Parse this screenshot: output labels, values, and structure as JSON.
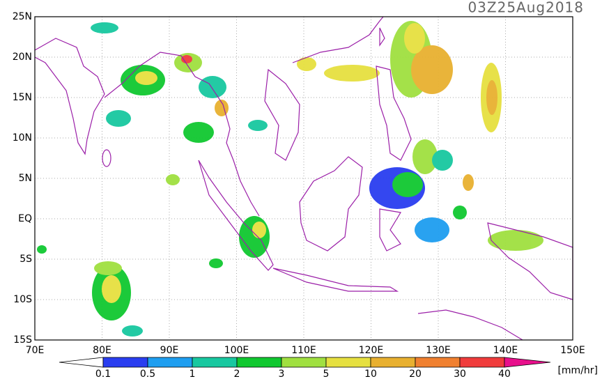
{
  "title": "03Z25Aug2018",
  "lat_labels": [
    "25N",
    "20N",
    "15N",
    "10N",
    "5N",
    "EQ",
    "5S",
    "10S",
    "15S"
  ],
  "lon_labels": [
    "70E",
    "80E",
    "90E",
    "100E",
    "110E",
    "120E",
    "130E",
    "140E",
    "150E"
  ],
  "colorbar": {
    "levels": [
      0.1,
      0.5,
      1,
      2,
      3,
      5,
      10,
      20,
      30,
      40
    ],
    "colors": [
      "#2a3ef0",
      "#1e9ef0",
      "#18c8a0",
      "#10c830",
      "#a0e040",
      "#e6e040",
      "#e8b030",
      "#f08030",
      "#f03c3c",
      "#e8108c"
    ],
    "unit": "[mm/hr]"
  }
}
